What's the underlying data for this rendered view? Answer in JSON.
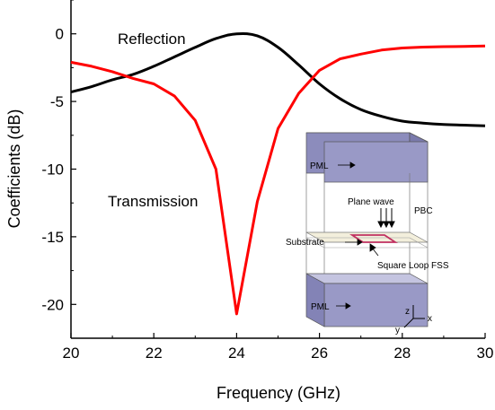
{
  "chart_data": {
    "type": "line",
    "xlabel": "Frequency (GHz)",
    "ylabel": "Coefficients (dB)",
    "xlim": [
      20,
      30
    ],
    "ylim": [
      -22.5,
      2.5
    ],
    "xticks": [
      "20",
      "22",
      "24",
      "26",
      "28",
      "30"
    ],
    "yticks": [
      "0",
      "-5",
      "-10",
      "-15",
      "-20"
    ],
    "grid": false,
    "series": [
      {
        "name": "Reflection",
        "color": "#000000",
        "x": [
          20,
          20.5,
          21,
          21.5,
          22,
          22.5,
          23,
          23.5,
          24,
          24.5,
          25,
          25.5,
          26,
          26.5,
          27,
          27.5,
          28,
          28.5,
          29,
          29.5,
          30
        ],
        "y": [
          -4.3,
          -3.9,
          -3.4,
          -3.0,
          -2.4,
          -1.7,
          -1.0,
          -0.35,
          0.0,
          -0.15,
          -1.0,
          -2.3,
          -3.7,
          -4.8,
          -5.6,
          -6.1,
          -6.45,
          -6.6,
          -6.7,
          -6.75,
          -6.8
        ]
      },
      {
        "name": "Transmission",
        "color": "#ff0000",
        "x": [
          20,
          20.5,
          21,
          21.5,
          22,
          22.5,
          23,
          23.5,
          24,
          24.5,
          25,
          25.5,
          26,
          26.5,
          27,
          27.5,
          28,
          28.5,
          29,
          29.5,
          30
        ],
        "y": [
          -2.1,
          -2.4,
          -2.8,
          -3.3,
          -3.7,
          -4.6,
          -6.4,
          -10.0,
          -20.7,
          -12.4,
          -7.0,
          -4.4,
          -2.7,
          -1.85,
          -1.5,
          -1.2,
          -1.05,
          -0.98,
          -0.95,
          -0.93,
          -0.9
        ]
      }
    ],
    "annotations": [
      {
        "text": "Reflection",
        "x": 24.3,
        "y": 0.8
      },
      {
        "text": "Transmission",
        "x": 22.6,
        "y": -12.3
      }
    ],
    "inset": {
      "description_labels": {
        "pml_top": "PML",
        "plane_wave": "Plane wave",
        "pbc": "PBC",
        "substrate": "Substrate",
        "fss": "Square Loop FSS",
        "pml_bottom": "PML",
        "axis_z": "z",
        "axis_x": "x",
        "axis_y": "y"
      },
      "colors": {
        "pml": "#8a8ab8",
        "pml_top_face": "#b8b8d8",
        "substrate": "#f3efdc",
        "fss": "#c03060"
      }
    }
  }
}
